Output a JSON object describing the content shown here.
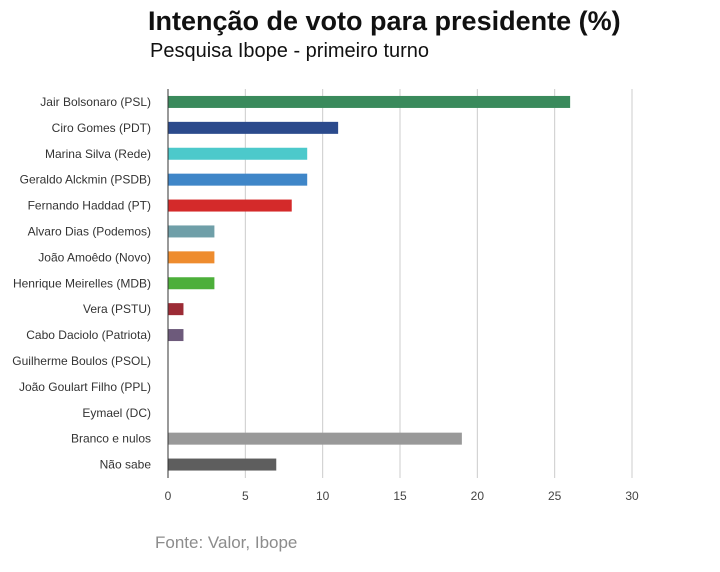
{
  "chart_data": {
    "type": "bar",
    "orientation": "horizontal",
    "title": "Intenção de voto para presidente (%)",
    "subtitle": "Pesquisa Ibope - primeiro turno",
    "source": "Fonte: Valor, Ibope",
    "xlim": [
      0,
      30
    ],
    "xticks": [
      0,
      5,
      10,
      15,
      20,
      25,
      30
    ],
    "grid": true,
    "categories": [
      "Jair Bolsonaro (PSL)",
      "Ciro Gomes (PDT)",
      "Marina Silva (Rede)",
      "Geraldo Alckmin (PSDB)",
      "Fernando Haddad (PT)",
      "Alvaro Dias (Podemos)",
      "João Amoêdo (Novo)",
      "Henrique Meirelles (MDB)",
      "Vera (PSTU)",
      "Cabo Daciolo (Patriota)",
      "Guilherme Boulos (PSOL)",
      "João Goulart Filho (PPL)",
      "Eymael (DC)",
      "Branco e nulos",
      "Não sabe"
    ],
    "values": [
      26,
      11,
      9,
      9,
      8,
      3,
      3,
      3,
      1,
      1,
      0,
      0,
      0,
      19,
      7
    ],
    "colors": [
      "#3a8a5c",
      "#2b4a8c",
      "#4cc9cb",
      "#3f86c8",
      "#d42a2a",
      "#6f9fa8",
      "#ee8c2e",
      "#4caf3a",
      "#9c2b35",
      "#6d5a7b",
      "#888888",
      "#888888",
      "#888888",
      "#999999",
      "#5e5e5e"
    ]
  }
}
